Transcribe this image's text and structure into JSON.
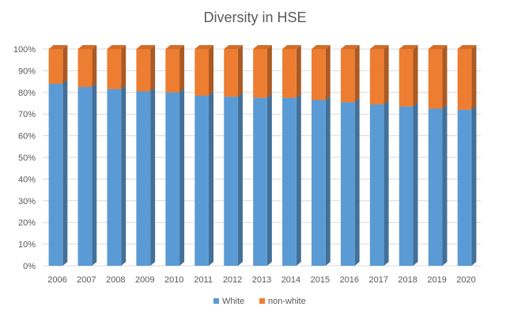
{
  "chart_data": {
    "type": "bar",
    "subtype": "stacked-100-3d",
    "title": "Diversity in HSE",
    "xlabel": "",
    "ylabel": "",
    "ylim": [
      0,
      100
    ],
    "y_unit": "%",
    "y_ticks": [
      "0%",
      "10%",
      "20%",
      "30%",
      "40%",
      "50%",
      "60%",
      "70%",
      "80%",
      "90%",
      "100%"
    ],
    "categories": [
      "2006",
      "2007",
      "2008",
      "2009",
      "2010",
      "2011",
      "2012",
      "2013",
      "2014",
      "2015",
      "2016",
      "2017",
      "2018",
      "2019",
      "2020"
    ],
    "series": [
      {
        "name": "White",
        "color": "#5B9BD5",
        "values": [
          84,
          82.5,
          81.5,
          80.5,
          80,
          78.5,
          78,
          77.5,
          77.5,
          76.5,
          75.5,
          74.5,
          73.5,
          72.5,
          72
        ]
      },
      {
        "name": "non-white",
        "color": "#ED7D31",
        "values": [
          16,
          17.5,
          18.5,
          19.5,
          20,
          21.5,
          22,
          22.5,
          22.5,
          23.5,
          24.5,
          25.5,
          26.5,
          27.5,
          28
        ]
      }
    ],
    "grid": true,
    "legend_position": "bottom"
  }
}
